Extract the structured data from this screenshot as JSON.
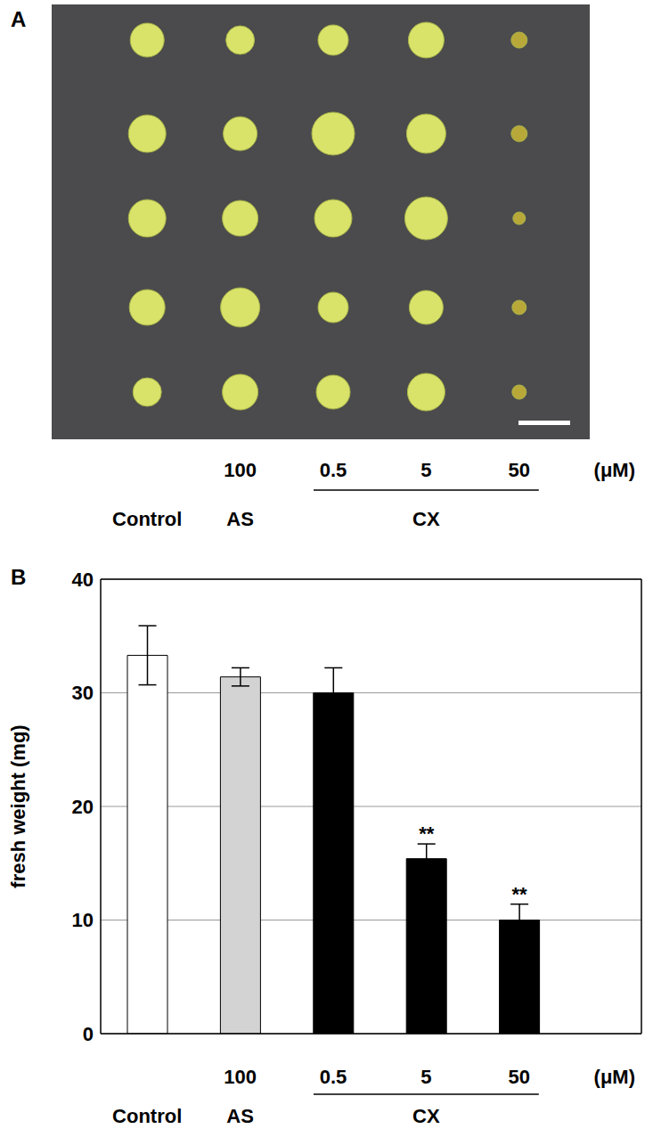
{
  "photo_panel": {
    "title": "A"
  },
  "chart_data": {
    "type": "bar",
    "title": "B",
    "categories": [
      null,
      "100",
      "0.5",
      "5",
      "50"
    ],
    "groups": [
      {
        "label": "Control",
        "count": 1
      },
      {
        "label": "AS",
        "count": 1
      },
      {
        "label": "CX",
        "count": 3
      }
    ],
    "x_unit": "(μM)",
    "y_label": "fresh weight (mg)",
    "values": [
      33.3,
      31.4,
      30.0,
      15.4,
      10.0
    ],
    "errors": [
      2.6,
      0.8,
      2.2,
      1.3,
      1.4
    ],
    "annotations": [
      null,
      null,
      null,
      "**",
      "**"
    ],
    "colors": [
      "#ffffff",
      "#d3d3d3",
      "#000000",
      "#000000",
      "#000000"
    ],
    "ylim": [
      0,
      40
    ],
    "yticks": [
      0,
      10,
      20,
      30,
      40
    ],
    "grid": true
  }
}
